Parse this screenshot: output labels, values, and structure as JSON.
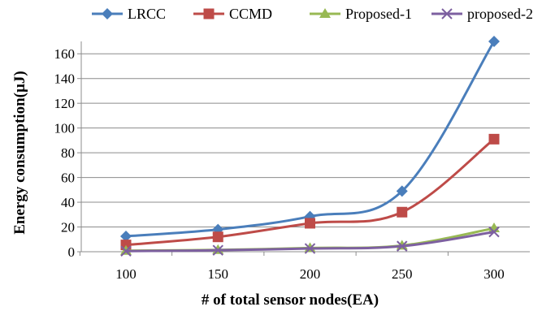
{
  "chart_data": {
    "type": "line",
    "title": "",
    "xlabel": "# of total sensor nodes(EA)",
    "ylabel": "Energy consumption(µJ)",
    "categories": [
      "100",
      "150",
      "200",
      "250",
      "300"
    ],
    "ylim": [
      0,
      170
    ],
    "yticks": [
      0,
      20,
      40,
      60,
      80,
      100,
      120,
      140,
      160
    ],
    "ytick_labels": [
      "0",
      "20",
      "40",
      "60",
      "80",
      "100",
      "120",
      "140",
      "160"
    ],
    "grid": "horizontal",
    "legend_position": "top",
    "series": [
      {
        "name": "LRCC",
        "values": [
          12.5,
          18,
          28.5,
          49,
          170
        ],
        "color": "#4A7EBB",
        "marker": "diamond"
      },
      {
        "name": "CCMD",
        "values": [
          5.5,
          12,
          23,
          32,
          91
        ],
        "color": "#BE4B48",
        "marker": "square"
      },
      {
        "name": "Proposed-1",
        "values": [
          0.8,
          1.5,
          3,
          5,
          19
        ],
        "color": "#98B954",
        "marker": "triangle"
      },
      {
        "name": "proposed-2",
        "values": [
          0.5,
          1.2,
          2.6,
          4.5,
          16
        ],
        "color": "#7D60A0",
        "marker": "x"
      }
    ]
  }
}
